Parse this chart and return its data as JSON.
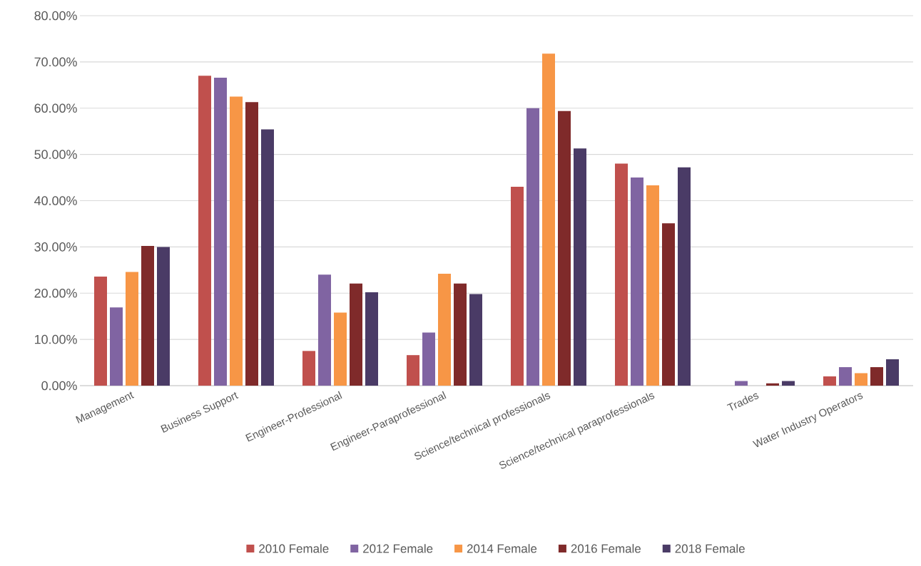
{
  "chart_data": {
    "type": "bar",
    "categories": [
      "Management",
      "Business Support",
      "Engineer-Professional",
      "Engineer-Paraprofessional",
      "Science/technical professionals",
      "Science/technical paraprofessionals",
      "Trades",
      "Water Industry Operators"
    ],
    "series": [
      {
        "name": "2010 Female",
        "color": "#c0504d",
        "values": [
          23.6,
          67.0,
          7.5,
          6.6,
          43.0,
          48.0,
          0,
          2.0
        ]
      },
      {
        "name": "2012 Female",
        "color": "#8064a2",
        "values": [
          16.9,
          66.6,
          24.0,
          11.5,
          60.0,
          45.0,
          1.0,
          4.0
        ]
      },
      {
        "name": "2014 Female",
        "color": "#f79646",
        "values": [
          24.6,
          62.5,
          15.8,
          24.2,
          71.8,
          43.3,
          0,
          2.7
        ]
      },
      {
        "name": "2016 Female",
        "color": "#7f2a2a",
        "values": [
          30.2,
          61.3,
          22.1,
          22.1,
          59.4,
          35.1,
          0.5,
          4.0
        ]
      },
      {
        "name": "2018 Female",
        "color": "#4a3b66",
        "values": [
          30.0,
          55.4,
          20.2,
          19.8,
          51.3,
          47.2,
          1.0,
          5.7
        ]
      }
    ],
    "ylim": [
      0,
      80
    ],
    "yticks": [
      {
        "value": 0,
        "label": "0.00%"
      },
      {
        "value": 10,
        "label": "10.00%"
      },
      {
        "value": 20,
        "label": "20.00%"
      },
      {
        "value": 30,
        "label": "30.00%"
      },
      {
        "value": 40,
        "label": "40.00%"
      },
      {
        "value": 50,
        "label": "50.00%"
      },
      {
        "value": 60,
        "label": "60.00%"
      },
      {
        "value": 70,
        "label": "70.00%"
      },
      {
        "value": 80,
        "label": "80.00%"
      }
    ],
    "grid": "y",
    "legend": "bottom"
  }
}
